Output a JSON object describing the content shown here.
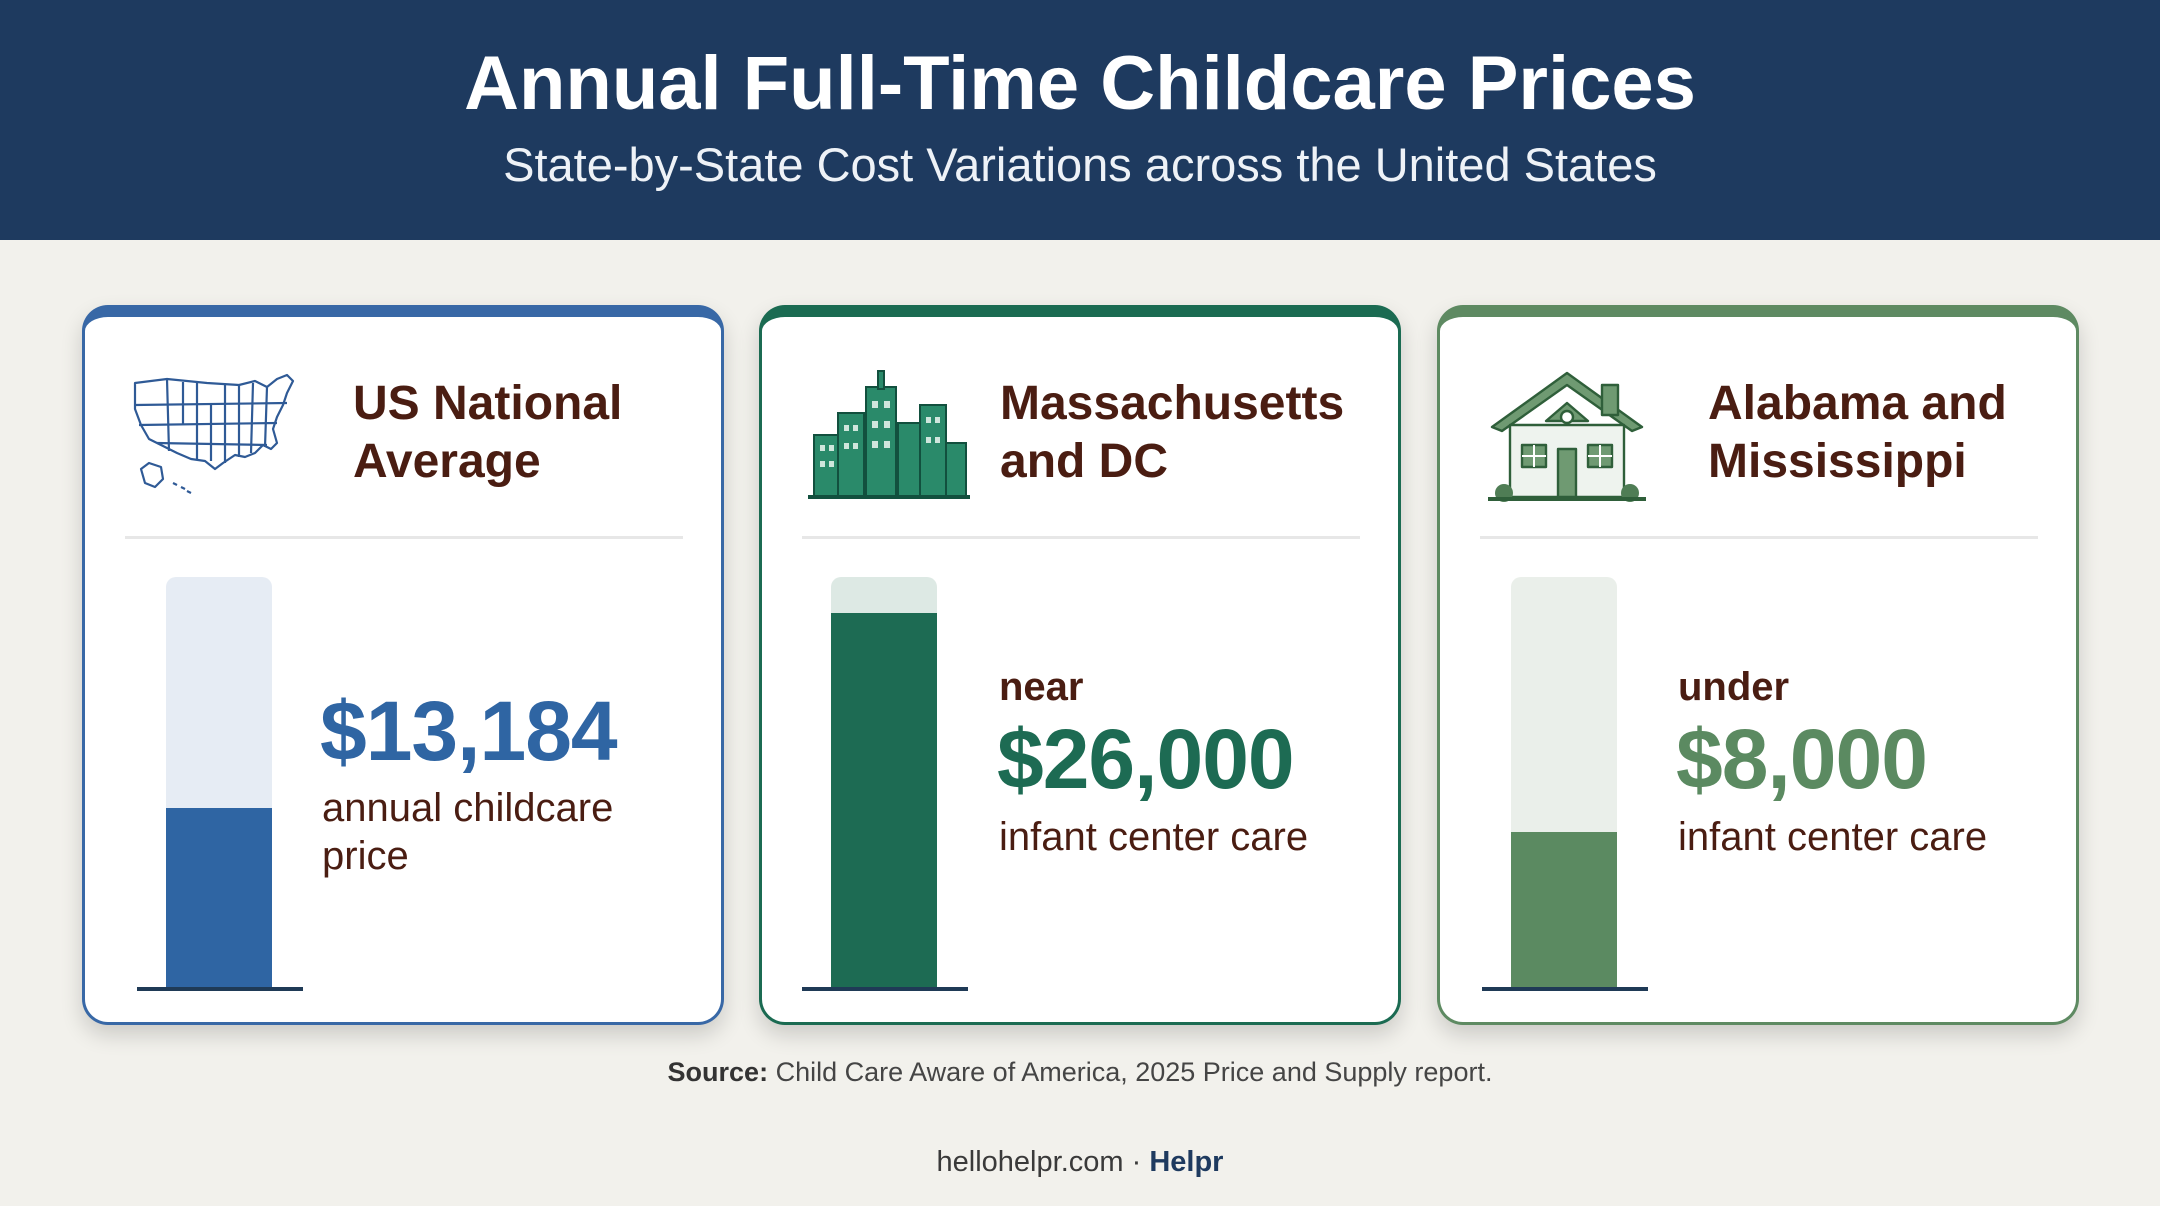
{
  "header": {
    "title": "Annual Full-Time Childcare Prices",
    "subtitle": "State-by-State Cost Variations across the United States"
  },
  "chart_data": [
    {
      "type": "bar",
      "title": "US National Average",
      "value_label": "$13,184",
      "prefix": "",
      "description": "annual childcare price",
      "value": 13184,
      "ylim": [
        0,
        30000
      ],
      "color": "#2f65a3",
      "track_color": "#e6ecf4",
      "icon": "us-map-icon"
    },
    {
      "type": "bar",
      "title": "Massachusetts and DC",
      "value_label": "$26,000",
      "prefix": "near",
      "description": "infant center care",
      "value": 26000,
      "ylim": [
        0,
        28500
      ],
      "color": "#1d6b53",
      "track_color": "#dde9e4",
      "icon": "city-skyline-icon"
    },
    {
      "type": "bar",
      "title": "Alabama and Mississippi",
      "value_label": "$8,000",
      "prefix": "under",
      "description": "infant center care",
      "value": 8000,
      "ylim": [
        0,
        21000
      ],
      "color": "#5b8a61",
      "track_color": "#eaefea",
      "icon": "house-icon"
    }
  ],
  "source": {
    "label": "Source:",
    "text": " Child Care Aware of America, 2025 Price and Supply report."
  },
  "footer": {
    "site": "hellohelpr.com",
    "separator": " · ",
    "brand": "Helpr"
  }
}
